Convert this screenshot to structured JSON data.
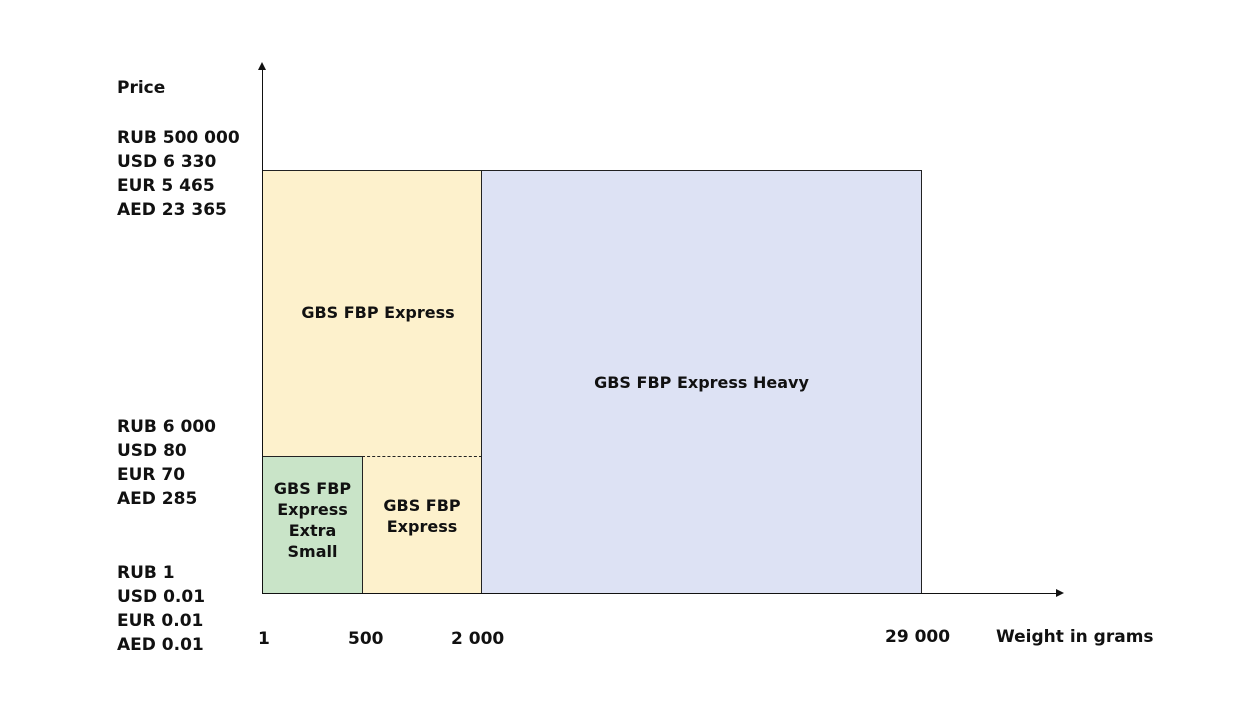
{
  "y_axis": {
    "title": "Price",
    "levels": [
      {
        "lines": [
          "RUB 500 000",
          "USD 6 330",
          "EUR 5 465",
          "AED 23 365"
        ]
      },
      {
        "lines": [
          "RUB 6 000",
          "USD 80",
          "EUR 70",
          "AED 285"
        ]
      },
      {
        "lines": [
          "RUB 1",
          "USD 0.01",
          "EUR 0.01",
          "AED 0.01"
        ]
      }
    ]
  },
  "x_axis": {
    "title": "Weight in grams",
    "ticks": [
      "1",
      "500",
      "2 000",
      "29 000"
    ]
  },
  "regions": [
    {
      "name": "GBS FBP Express Heavy",
      "color": "#dde2f4"
    },
    {
      "name": "GBS FBP Express",
      "color": "#fdf1cc"
    },
    {
      "name": "GBS FBP Express Extra Small",
      "color": "#c9e4c8"
    },
    {
      "name": "GBS FBP Express",
      "color": "#fdf1cc"
    }
  ],
  "colors": {
    "heavy": "#dde2f4",
    "express": "#fdf1cc",
    "extra_small": "#c9e4c8",
    "axis": "#111111"
  }
}
